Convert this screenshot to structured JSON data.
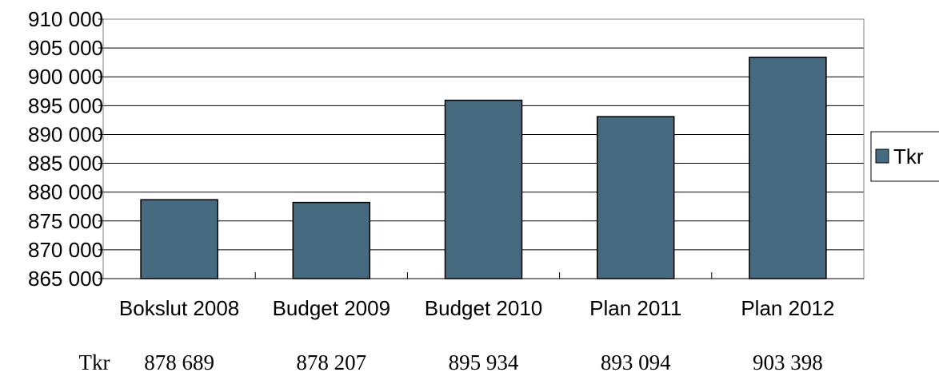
{
  "chart_data": {
    "type": "bar",
    "categories": [
      "Bokslut 2008",
      "Budget 2009",
      "Budget 2010",
      "Plan 2011",
      "Plan 2012"
    ],
    "series": [
      {
        "name": "Tkr",
        "values": [
          878689,
          878207,
          895934,
          893094,
          903398
        ],
        "color": "#466a7f"
      }
    ],
    "ylim": [
      865000,
      910000
    ],
    "yticks": [
      865000,
      870000,
      875000,
      880000,
      885000,
      890000,
      895000,
      900000,
      905000,
      910000
    ],
    "ytick_labels": [
      "865 000",
      "870 000",
      "875 000",
      "880 000",
      "885 000",
      "890 000",
      "895 000",
      "900 000",
      "905 000",
      "910 000"
    ],
    "grid": true,
    "legend": {
      "position": "right",
      "label": "Tkr"
    },
    "table": {
      "row_label": "Tkr",
      "values": [
        "878 689",
        "878 207",
        "895 934",
        "893 094",
        "903 398"
      ]
    }
  }
}
